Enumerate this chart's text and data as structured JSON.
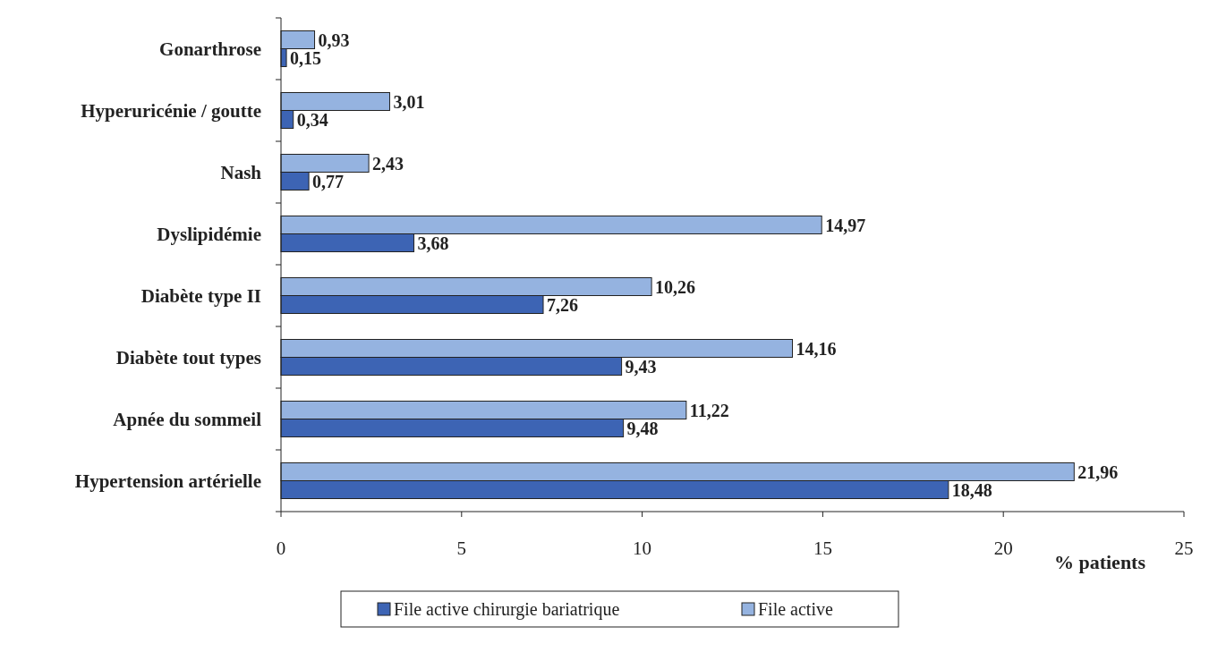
{
  "chart_data": {
    "type": "bar",
    "orientation": "horizontal",
    "xlabel": "% patients",
    "categories": [
      "Gonarthrose",
      "Hyperuricénie / goutte",
      "Nash",
      "Dyslipidémie",
      "Diabète type II",
      "Diabète tout types",
      "Apnée du sommeil",
      "Hypertension artérielle"
    ],
    "series": [
      {
        "name": "File active chirurgie bariatrique",
        "color": "#3d64b4",
        "values": [
          0.15,
          0.34,
          0.77,
          3.68,
          7.26,
          9.43,
          9.48,
          18.48
        ],
        "value_labels": [
          "0,15",
          "0,34",
          "0,77",
          "3,68",
          "7,26",
          "9,43",
          "9,48",
          "18,48"
        ]
      },
      {
        "name": "File active",
        "color": "#95b3e0",
        "values": [
          0.93,
          3.01,
          2.43,
          14.97,
          10.26,
          14.16,
          11.22,
          21.96
        ],
        "value_labels": [
          "0,93",
          "3,01",
          "2,43",
          "14,97",
          "10,26",
          "14,16",
          "11,22",
          "21,96"
        ]
      }
    ],
    "xlim": [
      0,
      25
    ],
    "xticks": [
      0,
      5,
      10,
      15,
      20,
      25
    ],
    "legend": "bottom",
    "grid": false
  }
}
